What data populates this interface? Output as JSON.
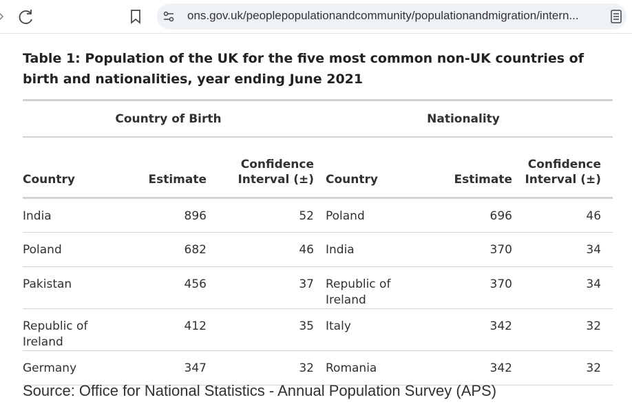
{
  "browser": {
    "url": "ons.gov.uk/peoplepopulationandcommunity/populationandmigration/intern..."
  },
  "table": {
    "title": "Table 1: Population of the UK for the five most common non-UK countries of birth and nationalities, year ending June 2021",
    "groups": [
      "Country of Birth",
      "Nationality"
    ],
    "columns": [
      "Country",
      "Estimate",
      "Confidence Interval (±)",
      "Country",
      "Estimate",
      "Confidence Interval (±)"
    ],
    "rows": [
      [
        "India",
        896,
        52,
        "Poland",
        696,
        46
      ],
      [
        "Poland",
        682,
        46,
        "India",
        370,
        34
      ],
      [
        "Pakistan",
        456,
        37,
        "Republic of Ireland",
        370,
        34
      ],
      [
        "Republic of Ireland",
        412,
        35,
        "Italy",
        342,
        32
      ],
      [
        "Germany",
        347,
        32,
        "Romania",
        342,
        32
      ]
    ]
  },
  "source": "Source: Office for National Statistics - Annual Population Survey (APS)"
}
